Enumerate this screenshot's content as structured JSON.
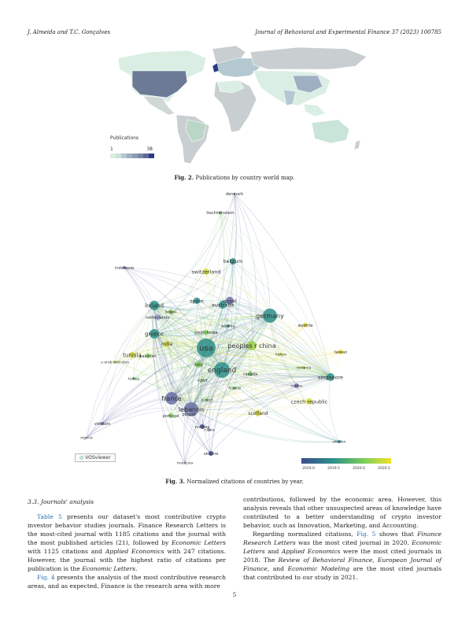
{
  "header": {
    "authors": "J. Almeida and T.C. Gonçalves",
    "journal": "Journal of Behavioral and Experimental Finance 37 (2023) 100785"
  },
  "figure2": {
    "caption_label": "Fig. 2.",
    "caption_text": "Publications by country world map.",
    "legend_title": "Publications",
    "legend_min": "1",
    "legend_max": "38",
    "legend_colors": [
      "#dbeee3",
      "#c9e4d8",
      "#b3c8d0",
      "#9fb0c3",
      "#8e9bb6",
      "#7a86a8",
      "#5e6a98",
      "#2d3c82"
    ]
  },
  "figure3": {
    "caption_label": "Fig. 3.",
    "caption_text": "Normalized citations of countries by year.",
    "logo_text": "VOSviewer",
    "colorbar_ticks": [
      "2019.0",
      "2019.5",
      "2020.0",
      "2020.5"
    ],
    "nodes": [
      {
        "label": "denmark"
      },
      {
        "label": "liechtenstein"
      },
      {
        "label": "belgium"
      },
      {
        "label": "switzerland"
      },
      {
        "label": "indonesia"
      },
      {
        "label": "israel"
      },
      {
        "label": "spain"
      },
      {
        "label": "australia"
      },
      {
        "label": "ireland"
      },
      {
        "label": "brazil"
      },
      {
        "label": "germany"
      },
      {
        "label": "netherlands"
      },
      {
        "label": "austria"
      },
      {
        "label": "albania"
      },
      {
        "label": "greece"
      },
      {
        "label": "south korea"
      },
      {
        "label": "india"
      },
      {
        "label": "usa"
      },
      {
        "label": "peoples r china"
      },
      {
        "label": "taiwan"
      },
      {
        "label": "tunisia"
      },
      {
        "label": "pakistan"
      },
      {
        "label": "u arab emirates"
      },
      {
        "label": "italy"
      },
      {
        "label": "kenya"
      },
      {
        "label": "england"
      },
      {
        "label": "canada"
      },
      {
        "label": "romania"
      },
      {
        "label": "singapore"
      },
      {
        "label": "turkey"
      },
      {
        "label": "egypt"
      },
      {
        "label": "finland"
      },
      {
        "label": "cyprus"
      },
      {
        "label": "france"
      },
      {
        "label": "czech republic"
      },
      {
        "label": "kuwait"
      },
      {
        "label": "lebanon"
      },
      {
        "label": "scotland"
      },
      {
        "label": "portugal"
      },
      {
        "label": "poland"
      },
      {
        "label": "norway"
      },
      {
        "label": "russia"
      },
      {
        "label": "vietnam"
      },
      {
        "label": "nigeria"
      },
      {
        "label": "ukraine"
      },
      {
        "label": "sweden"
      },
      {
        "label": "malaysia"
      }
    ]
  },
  "section": {
    "title": "3.3. Journals' analysis"
  },
  "left_column": {
    "p1_link": "Table 5",
    "p1_a": " presents our dataset's most contributive crypto investor behavior studies journals. Finance Research Letters is the most-cited journal with 1185 citations and the journal with the most published articles (21), followed by ",
    "p1_it1": "Economic Letters",
    "p1_b": " with 1125 citations and ",
    "p1_it2": "Applied Economics",
    "p1_c": " with 247 citations. However, the journal with the highest ratio of citations per publication is the ",
    "p1_it3": "Economic Letters",
    "p1_d": ".",
    "p2_link": "Fig. 4",
    "p2_a": " presents the analysis of the most contributive research areas, and as expected, Finance is the research area with more"
  },
  "right_column": {
    "p1": "contributions, followed by the economic area. However, this analysis reveals that other unsuspected areas of knowledge have contributed to a better understanding of crypto investor behavior, such as Innovation, Marketing, and Accounting.",
    "p2_a": "Regarding normalized citations, ",
    "p2_link": "Fig. 5",
    "p2_b": " shows that ",
    "p2_it1": "Finance Research Letters",
    "p2_c": " was the most cited journal in 2020. ",
    "p2_it2": "Economic Letters",
    "p2_d": " and ",
    "p2_it3": "Applied Economics",
    "p2_e": " were the most cited journals in 2018. The ",
    "p2_it4": "Review of Behavioral Finance, European Journal of Finance,",
    "p2_f": " and ",
    "p2_it5": "Economic Modeling",
    "p2_g": " are the most cited journals that contributed to our study in 2021."
  },
  "page_number": "5"
}
